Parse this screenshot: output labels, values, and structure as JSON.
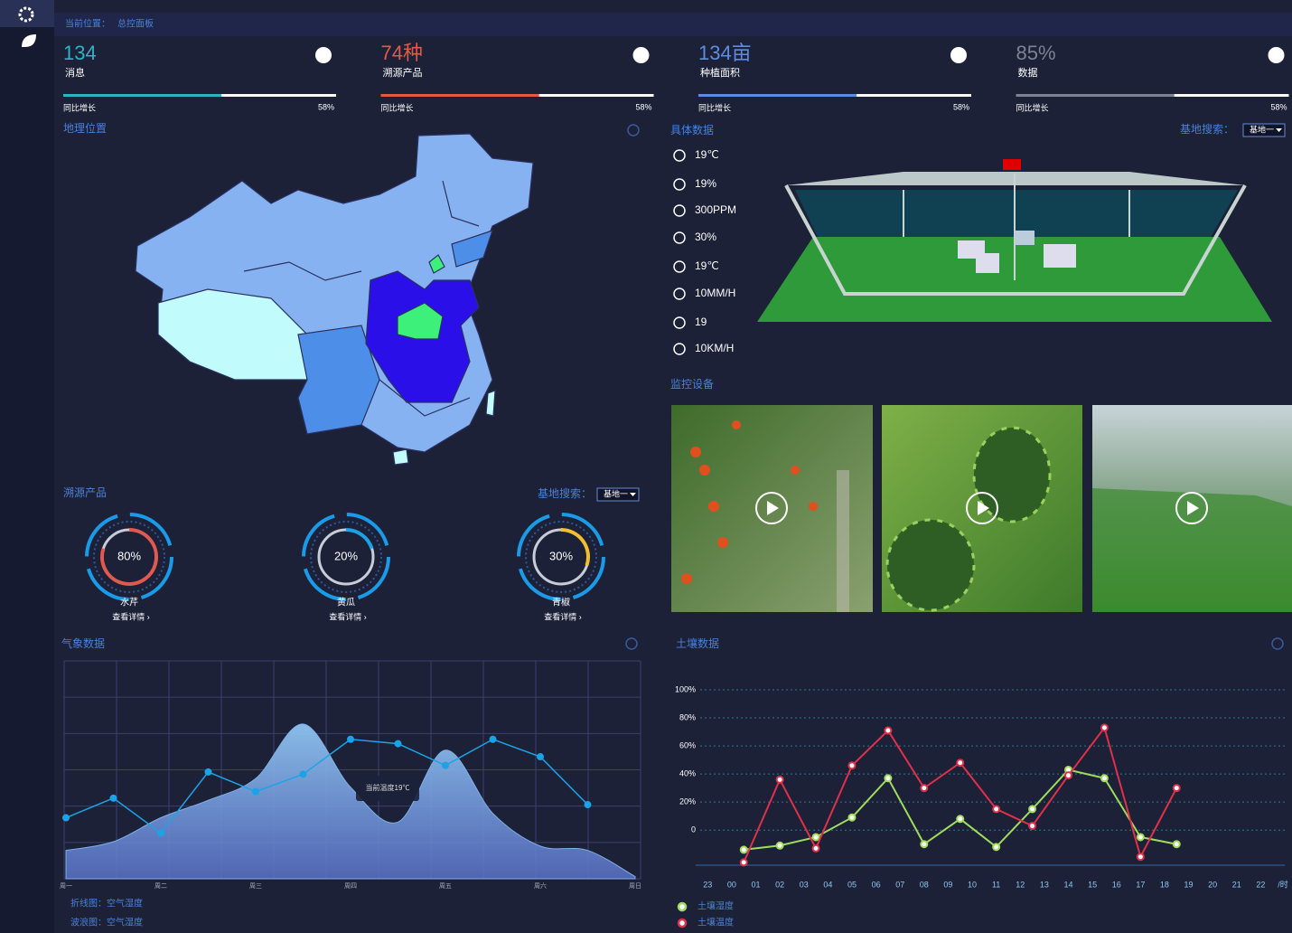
{
  "breadcrumb": {
    "label": "当前位置：",
    "current": "总控面板"
  },
  "stats": [
    {
      "value": "134",
      "label": "消息",
      "color": "#2bb5c6",
      "growth_label": "同比增长",
      "progress": {
        "value": 58,
        "label": "58%"
      }
    },
    {
      "value": "74种",
      "label": "溯源产品",
      "color": "#e05a45",
      "growth_label": "同比增长",
      "progress": {
        "value": 58,
        "label": "58%"
      }
    },
    {
      "value": "134亩",
      "label": "种植面积",
      "color": "#5b8ee0",
      "growth_label": "同比增长",
      "progress": {
        "value": 58,
        "label": "58%"
      }
    },
    {
      "value": "85%",
      "label": "数据",
      "color": "#7d8294",
      "growth_label": "同比增长",
      "progress": {
        "value": 58,
        "label": "58%"
      }
    }
  ],
  "map": {
    "title": "地理位置"
  },
  "env": {
    "title": "具体数据",
    "search_label": "基地搜索：",
    "search_value": "基地一",
    "items": [
      "19℃",
      "19%",
      "300PPM",
      "30%",
      "19℃",
      "10MM/H",
      "19",
      "10KM/H"
    ]
  },
  "cameras": {
    "title": "监控设备"
  },
  "products": {
    "title": "溯源产品",
    "search_label": "基地搜索：",
    "search_value": "基地一",
    "items": [
      {
        "percent": {
          "value": 80,
          "label": "80%"
        },
        "name": "水芹",
        "link": "查看详情 ›",
        "color": "#e05a4f"
      },
      {
        "percent": {
          "value": 20,
          "label": "20%"
        },
        "name": "黄瓜",
        "link": "查看详情 ›",
        "color": "#1aa3e8"
      },
      {
        "percent": {
          "value": 30,
          "label": "30%"
        },
        "name": "青椒",
        "link": "查看详情 ›",
        "color": "#f0c030"
      }
    ]
  },
  "chart_data": [
    {
      "type": "line",
      "title": "气象数据",
      "categories": [
        "周一",
        null,
        "周二",
        null,
        "周三",
        null,
        "周四",
        null,
        "周五",
        null,
        "周六",
        null,
        "周日"
      ],
      "series": [
        {
          "name": "折线图：空气湿度",
          "color": "#1ca3e6",
          "values": [
            28,
            37,
            21,
            49,
            40,
            48,
            64,
            62,
            52,
            64,
            56,
            34,
            null
          ]
        },
        {
          "name": "波浪图：空气湿度",
          "color": "#7fb0e8",
          "values": [
            13,
            17,
            28,
            36,
            46,
            71,
            42,
            26,
            59,
            30,
            15,
            13,
            1
          ]
        }
      ],
      "ylim": [
        0,
        100
      ],
      "annotation": "当前温度19℃",
      "grid": true
    },
    {
      "type": "line",
      "title": "土壤数据",
      "x": [
        0.5,
        2,
        3.5,
        5,
        6.5,
        8,
        9.5,
        11,
        12.5,
        14,
        15.5,
        17,
        18.5
      ],
      "xlim": [
        -1.5,
        23
      ],
      "xticks": [
        {
          "value": -1,
          "label": "23"
        },
        {
          "value": 0,
          "label": "00"
        },
        {
          "value": 1,
          "label": "01"
        },
        {
          "value": 2,
          "label": "02"
        },
        {
          "value": 3,
          "label": "03"
        },
        {
          "value": 4,
          "label": "04"
        },
        {
          "value": 5,
          "label": "05"
        },
        {
          "value": 6,
          "label": "06"
        },
        {
          "value": 7,
          "label": "07"
        },
        {
          "value": 8,
          "label": "08"
        },
        {
          "value": 9,
          "label": "09"
        },
        {
          "value": 10,
          "label": "10"
        },
        {
          "value": 11,
          "label": "11"
        },
        {
          "value": 12,
          "label": "12"
        },
        {
          "value": 13,
          "label": "13"
        },
        {
          "value": 14,
          "label": "14"
        },
        {
          "value": 15,
          "label": "15"
        },
        {
          "value": 16,
          "label": "16"
        },
        {
          "value": 17,
          "label": "17"
        },
        {
          "value": 18,
          "label": "18"
        },
        {
          "value": 19,
          "label": "19"
        },
        {
          "value": 20,
          "label": "20"
        },
        {
          "value": 21,
          "label": "21"
        },
        {
          "value": 22,
          "label": "22"
        }
      ],
      "x_unit": "/时",
      "ylim": [
        -25,
        100
      ],
      "yticks": [
        {
          "value": 100,
          "label": "100%"
        },
        {
          "value": 80,
          "label": "80%"
        },
        {
          "value": 60,
          "label": "60%"
        },
        {
          "value": 40,
          "label": "40%"
        },
        {
          "value": 20,
          "label": "20%"
        },
        0
      ],
      "series": [
        {
          "name": "土壤湿度",
          "color": "#9fdc5c",
          "values": [
            -14,
            -11,
            -5,
            9,
            37,
            -10,
            8,
            -12,
            15,
            43,
            37,
            -5,
            -10
          ]
        },
        {
          "name": "土壤温度",
          "color": "#e0304a",
          "values": [
            -23,
            36,
            -13,
            46,
            71,
            30,
            48,
            15,
            3,
            39,
            73,
            -19,
            30
          ]
        }
      ],
      "grid": true
    }
  ]
}
